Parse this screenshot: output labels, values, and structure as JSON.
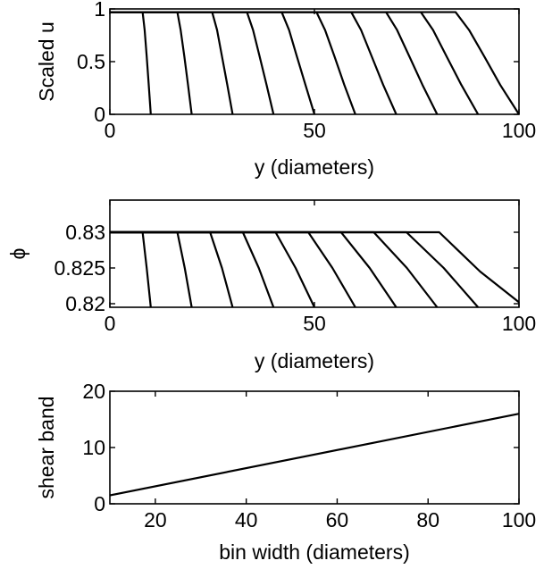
{
  "chart_data": [
    {
      "type": "line",
      "ylabel": "Scaled u",
      "xlabel": "y (diameters)",
      "xlim": [
        0,
        100
      ],
      "ylim": [
        0,
        1
      ],
      "xticks": [
        0,
        50,
        100
      ],
      "yticks": [
        0,
        0.5,
        1
      ],
      "xtick_labels": [
        "0",
        "50",
        "100"
      ],
      "ytick_labels": [
        "0",
        "0.5",
        "1"
      ],
      "plateau": 0.97,
      "legend": "none",
      "grid": false,
      "series": [
        {
          "bin_width": 10,
          "points": [
            [
              0,
              0.97
            ],
            [
              8,
              0.97
            ],
            [
              8.5,
              0.8
            ],
            [
              9,
              0.55
            ],
            [
              9.5,
              0.28
            ],
            [
              10,
              0.0
            ]
          ]
        },
        {
          "bin_width": 20,
          "points": [
            [
              0,
              0.97
            ],
            [
              16.5,
              0.97
            ],
            [
              17.3,
              0.8
            ],
            [
              18.2,
              0.55
            ],
            [
              19.1,
              0.28
            ],
            [
              20,
              0.0
            ]
          ]
        },
        {
          "bin_width": 30,
          "points": [
            [
              0,
              0.97
            ],
            [
              25,
              0.97
            ],
            [
              26.2,
              0.8
            ],
            [
              27.4,
              0.55
            ],
            [
              28.7,
              0.28
            ],
            [
              30,
              0.0
            ]
          ]
        },
        {
          "bin_width": 40,
          "points": [
            [
              0,
              0.97
            ],
            [
              33.5,
              0.97
            ],
            [
              35,
              0.8
            ],
            [
              36.6,
              0.55
            ],
            [
              38.3,
              0.28
            ],
            [
              40,
              0.0
            ]
          ]
        },
        {
          "bin_width": 50,
          "points": [
            [
              0,
              0.97
            ],
            [
              42,
              0.97
            ],
            [
              43.8,
              0.8
            ],
            [
              45.7,
              0.55
            ],
            [
              47.8,
              0.28
            ],
            [
              50,
              0.0
            ]
          ]
        },
        {
          "bin_width": 60,
          "points": [
            [
              0,
              0.97
            ],
            [
              50.5,
              0.97
            ],
            [
              52.6,
              0.8
            ],
            [
              54.9,
              0.55
            ],
            [
              57.3,
              0.28
            ],
            [
              60,
              0.0
            ]
          ]
        },
        {
          "bin_width": 70,
          "points": [
            [
              0,
              0.97
            ],
            [
              59,
              0.97
            ],
            [
              61.4,
              0.8
            ],
            [
              64,
              0.55
            ],
            [
              66.8,
              0.28
            ],
            [
              70,
              0.0
            ]
          ]
        },
        {
          "bin_width": 80,
          "points": [
            [
              0,
              0.97
            ],
            [
              67.5,
              0.97
            ],
            [
              70.2,
              0.8
            ],
            [
              73.2,
              0.55
            ],
            [
              76.4,
              0.28
            ],
            [
              80,
              0.0
            ]
          ]
        },
        {
          "bin_width": 90,
          "points": [
            [
              0,
              0.97
            ],
            [
              76,
              0.97
            ],
            [
              79,
              0.8
            ],
            [
              82.3,
              0.55
            ],
            [
              85.9,
              0.28
            ],
            [
              90,
              0.0
            ]
          ]
        },
        {
          "bin_width": 100,
          "points": [
            [
              0,
              0.97
            ],
            [
              84.5,
              0.97
            ],
            [
              87.8,
              0.8
            ],
            [
              91.5,
              0.55
            ],
            [
              95.4,
              0.28
            ],
            [
              100,
              0.0
            ]
          ]
        }
      ]
    },
    {
      "type": "line",
      "ylabel": "ϕ",
      "xlabel": "y (diameters)",
      "xlim": [
        0,
        100
      ],
      "ylim": [
        0.8195,
        0.8345
      ],
      "xticks": [
        0,
        50,
        100
      ],
      "yticks": [
        0.82,
        0.825,
        0.83
      ],
      "xtick_labels": [
        "0",
        "50",
        "100"
      ],
      "ytick_labels": [
        "0.82",
        "0.825",
        "0.83"
      ],
      "plateau": 0.83,
      "legend": "none",
      "grid": false,
      "series": [
        {
          "bin_width": 10,
          "points": [
            [
              0,
              0.83
            ],
            [
              8,
              0.83
            ],
            [
              9,
              0.825
            ],
            [
              10,
              0.8195
            ]
          ]
        },
        {
          "bin_width": 20,
          "points": [
            [
              0,
              0.83
            ],
            [
              16.5,
              0.83
            ],
            [
              18.3,
              0.825
            ],
            [
              20,
              0.8195
            ]
          ]
        },
        {
          "bin_width": 30,
          "points": [
            [
              0,
              0.83
            ],
            [
              24.5,
              0.83
            ],
            [
              27.4,
              0.825
            ],
            [
              30,
              0.8195
            ]
          ]
        },
        {
          "bin_width": 40,
          "points": [
            [
              0,
              0.83
            ],
            [
              32.5,
              0.83
            ],
            [
              36.4,
              0.825
            ],
            [
              40,
              0.8195
            ]
          ]
        },
        {
          "bin_width": 50,
          "points": [
            [
              0,
              0.83
            ],
            [
              40.5,
              0.83
            ],
            [
              45.4,
              0.825
            ],
            [
              50,
              0.8195
            ]
          ]
        },
        {
          "bin_width": 60,
          "points": [
            [
              0,
              0.83
            ],
            [
              48.5,
              0.83
            ],
            [
              54.4,
              0.825
            ],
            [
              60,
              0.8195
            ]
          ]
        },
        {
          "bin_width": 70,
          "points": [
            [
              0,
              0.83
            ],
            [
              56.5,
              0.83
            ],
            [
              63.5,
              0.825
            ],
            [
              70,
              0.8195
            ]
          ]
        },
        {
          "bin_width": 80,
          "points": [
            [
              0,
              0.83
            ],
            [
              64.5,
              0.83
            ],
            [
              72.6,
              0.825
            ],
            [
              80,
              0.8195
            ]
          ]
        },
        {
          "bin_width": 90,
          "points": [
            [
              0,
              0.83
            ],
            [
              72.5,
              0.83
            ],
            [
              81.6,
              0.825
            ],
            [
              90,
              0.8195
            ]
          ]
        },
        {
          "bin_width": 100,
          "points": [
            [
              0,
              0.83
            ],
            [
              80.5,
              0.83
            ],
            [
              90.5,
              0.8245
            ],
            [
              100,
              0.8202
            ]
          ]
        }
      ]
    },
    {
      "type": "line",
      "ylabel": "shear band",
      "xlabel": "bin width (diameters)",
      "xlim": [
        10,
        100
      ],
      "ylim": [
        0,
        20
      ],
      "xticks": [
        20,
        40,
        60,
        80,
        100
      ],
      "yticks": [
        0,
        10,
        20
      ],
      "xtick_labels": [
        "20",
        "40",
        "60",
        "80",
        "100"
      ],
      "ytick_labels": [
        "0",
        "10",
        "20"
      ],
      "legend": "none",
      "grid": false,
      "series": [
        {
          "points": [
            [
              10,
              1.5
            ],
            [
              100,
              16
            ]
          ]
        }
      ]
    }
  ]
}
